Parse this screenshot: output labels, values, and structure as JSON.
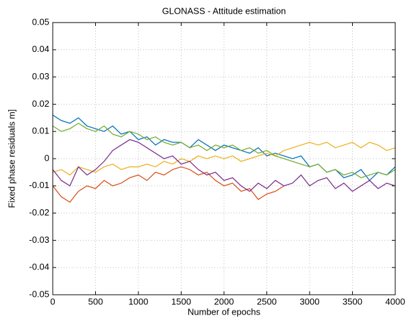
{
  "chart_data": {
    "type": "line",
    "title": "GLONASS - Attitude estimation",
    "x_label": "Number of epochs",
    "y_label": "Fixed phase residuals m]",
    "xlim": [
      0,
      4000
    ],
    "xticks": [
      0,
      500,
      1000,
      1500,
      2000,
      2500,
      3000,
      3500,
      4000
    ],
    "ylim": [
      -0.05,
      0.05
    ],
    "yticks": [
      -0.05,
      -0.04,
      -0.03,
      -0.02,
      -0.01,
      0,
      0.01,
      0.02,
      0.03,
      0.04,
      0.05
    ],
    "grid": true,
    "x": [
      0,
      100,
      200,
      300,
      400,
      500,
      600,
      700,
      800,
      900,
      1000,
      1100,
      1200,
      1300,
      1400,
      1500,
      1600,
      1700,
      1800,
      1900,
      2000,
      2100,
      2200,
      2300,
      2400,
      2500,
      2600,
      2700,
      2800,
      2900,
      3000,
      3100,
      3200,
      3300,
      3400,
      3500,
      3600,
      3700,
      3800,
      3900,
      4000
    ],
    "series": [
      {
        "color": "#0072bd",
        "values": [
          0.016,
          0.014,
          0.013,
          0.015,
          0.012,
          0.011,
          0.01,
          0.012,
          0.009,
          0.01,
          0.007,
          0.008,
          0.005,
          0.007,
          0.006,
          0.006,
          0.004,
          0.007,
          0.005,
          0.003,
          0.005,
          0.004,
          0.003,
          0.002,
          0.004,
          0.001,
          0.002,
          0.001,
          0,
          0.001,
          -0.003,
          -0.002,
          -0.005,
          -0.004,
          -0.007,
          -0.006,
          -0.004,
          -0.008,
          -0.005,
          -0.006,
          -0.003
        ]
      },
      {
        "color": "#d95319",
        "values": [
          -0.01,
          -0.014,
          -0.016,
          -0.012,
          -0.01,
          -0.011,
          -0.008,
          -0.01,
          -0.009,
          -0.007,
          -0.006,
          -0.008,
          -0.005,
          -0.006,
          -0.004,
          -0.003,
          -0.004,
          -0.006,
          -0.005,
          -0.008,
          -0.01,
          -0.009,
          -0.012,
          -0.011,
          -0.015,
          -0.013,
          -0.012,
          -0.01,
          null,
          null,
          null,
          null,
          null,
          null,
          null,
          null,
          null,
          null,
          null,
          null,
          null
        ]
      },
      {
        "color": "#edb120",
        "values": [
          -0.005,
          -0.004,
          -0.006,
          -0.003,
          -0.004,
          -0.005,
          -0.003,
          -0.002,
          -0.004,
          -0.003,
          -0.003,
          -0.002,
          -0.003,
          -0.001,
          -0.002,
          0,
          -0.001,
          0.001,
          0,
          0.001,
          0,
          0.001,
          -0.001,
          0,
          0.001,
          0.002,
          0.001,
          0.003,
          0.004,
          0.005,
          0.006,
          0.005,
          0.006,
          0.004,
          0.005,
          0.006,
          0.004,
          0.006,
          0.005,
          0.003,
          0.004
        ]
      },
      {
        "color": "#7e2f8e",
        "values": [
          -0.004,
          -0.008,
          -0.01,
          -0.003,
          -0.006,
          -0.004,
          -0.001,
          0.003,
          0.005,
          0.007,
          0.006,
          0.004,
          0.002,
          0,
          0.001,
          -0.002,
          -0.001,
          -0.004,
          -0.006,
          -0.005,
          -0.008,
          -0.007,
          -0.01,
          -0.012,
          -0.009,
          -0.011,
          -0.008,
          -0.01,
          -0.009,
          -0.006,
          -0.01,
          -0.008,
          -0.007,
          -0.011,
          -0.009,
          -0.012,
          -0.01,
          -0.008,
          -0.011,
          -0.009,
          -0.01
        ]
      },
      {
        "color": "#77ac30",
        "values": [
          0.012,
          0.01,
          0.011,
          0.013,
          0.011,
          0.01,
          0.012,
          0.009,
          0.008,
          0.01,
          0.009,
          0.007,
          0.008,
          0.006,
          0.005,
          0.006,
          0.004,
          0.005,
          0.003,
          0.005,
          0.004,
          0.005,
          0.003,
          0.004,
          0.002,
          0.003,
          0.001,
          0,
          -0.001,
          -0.002,
          -0.003,
          -0.002,
          -0.005,
          -0.004,
          -0.006,
          -0.005,
          -0.007,
          -0.006,
          -0.005,
          -0.006,
          -0.004
        ]
      }
    ]
  }
}
